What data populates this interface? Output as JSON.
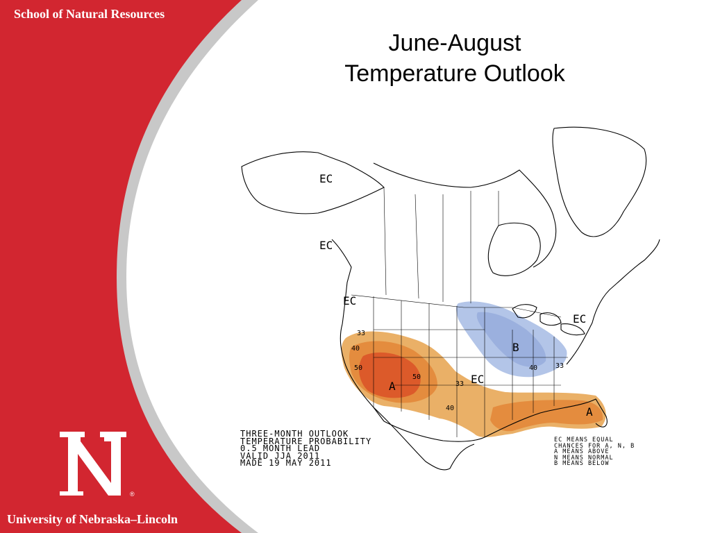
{
  "slide": {
    "school_label": "School of Natural Resources",
    "university_label": "University of Nebraska–Lincoln",
    "logo": {
      "letter": "N",
      "mark": "®"
    },
    "title_line1": "June-August",
    "title_line2": "Temperature Outlook",
    "colors": {
      "brand_red": "#d22630",
      "swoosh_gray": "#c8c8c8"
    }
  },
  "map": {
    "region_labels": {
      "ec_alaska": "EC",
      "ec_bc": "EC",
      "ec_northwest": "EC",
      "ec_northeast": "EC",
      "ec_central": "EC",
      "below": "B",
      "above_southwest": "A",
      "above_florida": "A"
    },
    "contour_labels": {
      "c33_west": "33",
      "c40_west": "40",
      "c50_west": "50",
      "c50_east": "50",
      "c33_south": "33",
      "c40_south": "40",
      "c40_below": "40",
      "c33_below": "33"
    },
    "info_text": "Three-Month Outlook\nTemperature Probability\n0.5 Month Lead\nValid JJA 2011\nMade 19 May 2011",
    "key_text": "EC means Equal\nChances for A, N, B\nA means Above\nN means Normal\nB means Below",
    "colors": {
      "above_33": "#eab067",
      "above_40": "#e48c3e",
      "above_50": "#dc5a2a",
      "below_33": "#b3c5e8",
      "below_40": "#9bb0de"
    }
  }
}
